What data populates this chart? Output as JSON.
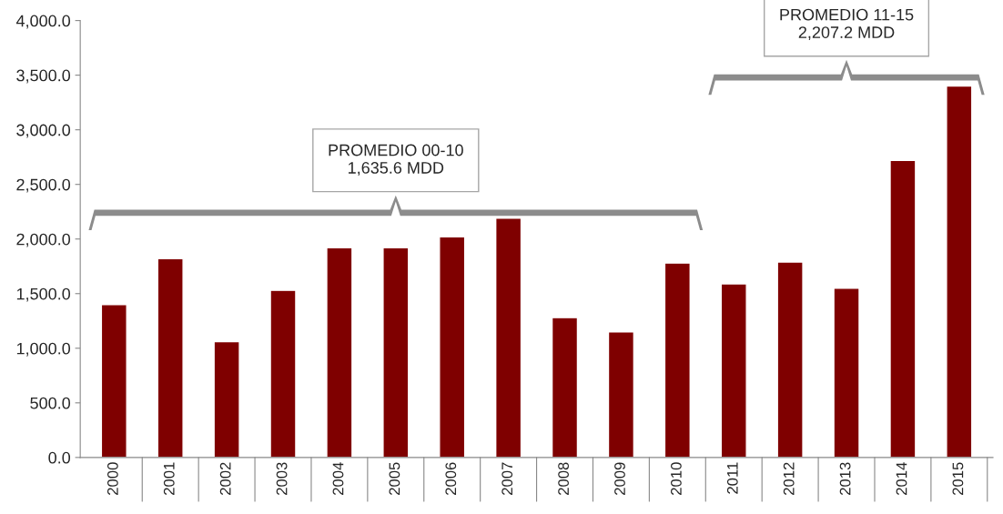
{
  "chart_data": {
    "type": "bar",
    "categories": [
      "2000",
      "2001",
      "2002",
      "2003",
      "2004",
      "2005",
      "2006",
      "2007",
      "2008",
      "2009",
      "2010",
      "2011",
      "2012",
      "2013",
      "2014",
      "2015"
    ],
    "values": [
      1400,
      1820,
      1060,
      1530,
      1920,
      1920,
      2020,
      2190,
      1280,
      1150,
      1780,
      1590,
      1790,
      1550,
      2720,
      3400
    ],
    "color": "#7f0000",
    "ylim": [
      0,
      4000
    ],
    "yticks": [
      {
        "value": 0,
        "label": "0.0"
      },
      {
        "value": 500,
        "label": "500.0"
      },
      {
        "value": 1000,
        "label": "1,000.0"
      },
      {
        "value": 1500,
        "label": "1,500.0"
      },
      {
        "value": 2000,
        "label": "2,000.0"
      },
      {
        "value": 2500,
        "label": "2,500.0"
      },
      {
        "value": 3000,
        "label": "3,000.0"
      },
      {
        "value": 3500,
        "label": "3,500.0"
      },
      {
        "value": 4000,
        "label": "4,000.0"
      }
    ],
    "grid": false,
    "annotations": [
      "PROMEDIO 00-10\n1,635.6 MDD",
      "PROMEDIO 11-15\n2,207.2 MDD"
    ]
  }
}
